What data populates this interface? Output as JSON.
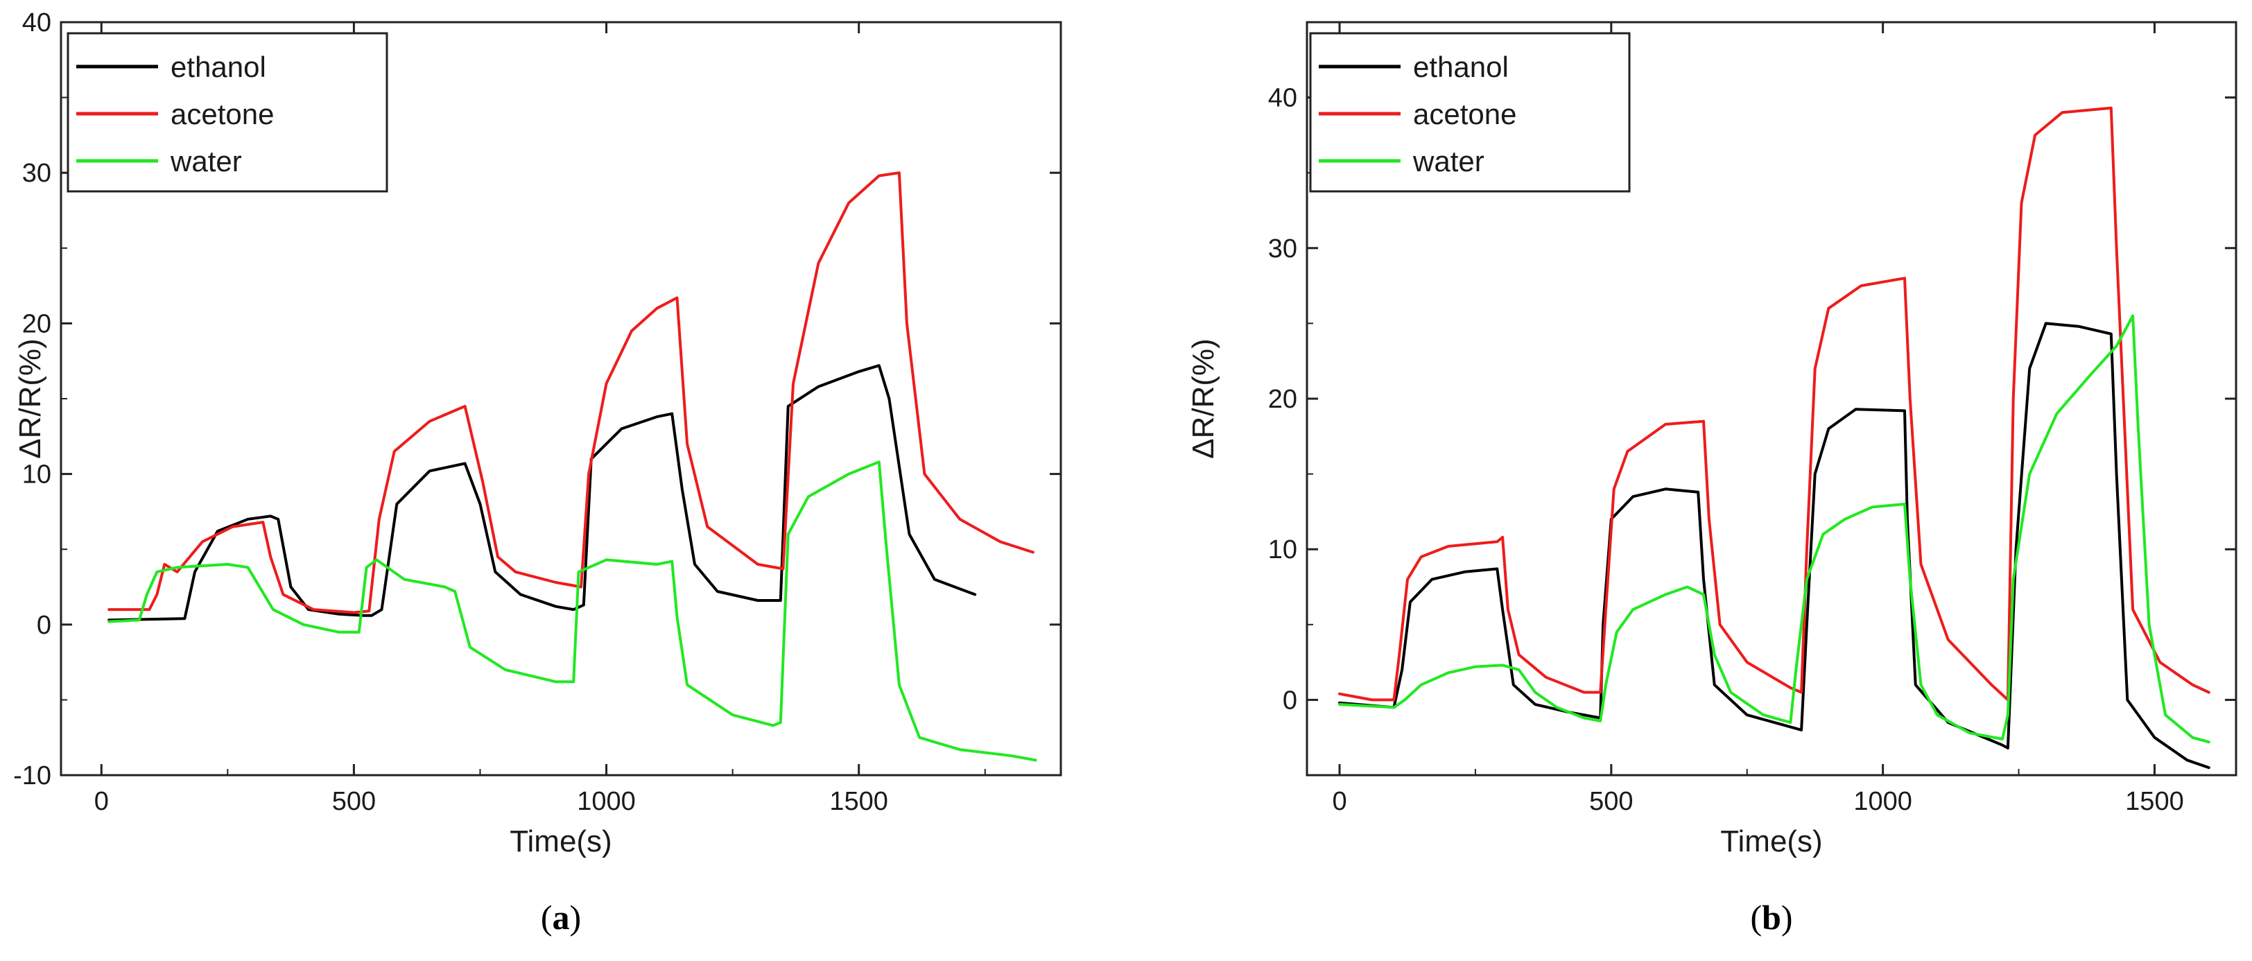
{
  "chart_data": [
    {
      "type": "line",
      "panel_label_open": "(",
      "panel_label_letter": "a",
      "panel_label_close": ")",
      "xlabel": "Time(s)",
      "ylabel": "ΔR/R(%)",
      "xlim": [
        -80,
        1900
      ],
      "ylim": [
        -10,
        40
      ],
      "xticks": [
        0,
        500,
        1000,
        1500
      ],
      "xtick_labels": [
        "0",
        "500",
        "1000",
        "1500"
      ],
      "yticks": [
        -10,
        0,
        10,
        20,
        30,
        40
      ],
      "ytick_labels": [
        "-10",
        "0",
        "10",
        "20",
        "30",
        "40"
      ],
      "legend_position": "top-left",
      "series": [
        {
          "name": "ethanol",
          "color": "#000000",
          "x": [
            15,
            165,
            185,
            230,
            290,
            335,
            350,
            375,
            410,
            470,
            520,
            535,
            555,
            585,
            650,
            720,
            750,
            780,
            830,
            900,
            935,
            955,
            970,
            1030,
            1100,
            1130,
            1150,
            1175,
            1220,
            1300,
            1345,
            1360,
            1420,
            1500,
            1540,
            1560,
            1600,
            1650,
            1730
          ],
          "y": [
            0.3,
            0.4,
            3.5,
            6.2,
            7.0,
            7.2,
            7.0,
            2.5,
            1.0,
            0.7,
            0.6,
            0.6,
            1.0,
            8.0,
            10.2,
            10.7,
            8.0,
            3.5,
            2.0,
            1.2,
            1.0,
            1.3,
            11.0,
            13.0,
            13.8,
            14.0,
            9.0,
            4.0,
            2.2,
            1.6,
            1.6,
            14.5,
            15.8,
            16.8,
            17.2,
            15.0,
            6.0,
            3.0,
            2.0
          ]
        },
        {
          "name": "acetone",
          "color": "#ee1c1c",
          "x": [
            15,
            95,
            110,
            125,
            150,
            200,
            260,
            320,
            335,
            360,
            420,
            500,
            530,
            550,
            580,
            650,
            720,
            755,
            785,
            820,
            900,
            950,
            965,
            1000,
            1050,
            1100,
            1140,
            1160,
            1200,
            1300,
            1350,
            1370,
            1420,
            1480,
            1540,
            1580,
            1595,
            1630,
            1700,
            1780,
            1845
          ],
          "y": [
            1.0,
            1.0,
            2.0,
            4.0,
            3.5,
            5.5,
            6.5,
            6.8,
            4.5,
            2.0,
            1.0,
            0.8,
            0.9,
            7.0,
            11.5,
            13.5,
            14.5,
            9.5,
            4.5,
            3.5,
            2.8,
            2.5,
            10.0,
            16.0,
            19.5,
            21.0,
            21.7,
            12.0,
            6.5,
            4.0,
            3.7,
            16.0,
            24.0,
            28.0,
            29.8,
            30.0,
            20.0,
            10.0,
            7.0,
            5.5,
            4.8
          ]
        },
        {
          "name": "water",
          "color": "#22e822",
          "x": [
            15,
            75,
            90,
            110,
            150,
            250,
            290,
            340,
            400,
            470,
            510,
            525,
            545,
            600,
            680,
            700,
            730,
            800,
            900,
            935,
            945,
            1000,
            1100,
            1130,
            1140,
            1160,
            1250,
            1330,
            1345,
            1360,
            1400,
            1480,
            1540,
            1555,
            1580,
            1620,
            1700,
            1800,
            1850
          ],
          "y": [
            0.2,
            0.3,
            2.0,
            3.5,
            3.8,
            4.0,
            3.8,
            1.0,
            0.0,
            -0.5,
            -0.5,
            3.8,
            4.3,
            3.0,
            2.5,
            2.2,
            -1.5,
            -3.0,
            -3.8,
            -3.8,
            3.5,
            4.3,
            4.0,
            4.2,
            0.5,
            -4.0,
            -6.0,
            -6.7,
            -6.5,
            6.0,
            8.5,
            10.0,
            10.8,
            5.0,
            -4.0,
            -7.5,
            -8.3,
            -8.7,
            -9.0
          ]
        }
      ]
    },
    {
      "type": "line",
      "panel_label_open": "(",
      "panel_label_letter": "b",
      "panel_label_close": ")",
      "xlabel": "Time(s)",
      "ylabel": "ΔR/R(%)",
      "xlim": [
        -60,
        1650
      ],
      "ylim": [
        -5,
        45
      ],
      "xticks": [
        0,
        500,
        1000,
        1500
      ],
      "xtick_labels": [
        "0",
        "500",
        "1000",
        "1500"
      ],
      "yticks": [
        0,
        10,
        20,
        30,
        40
      ],
      "ytick_labels": [
        "0",
        "10",
        "20",
        "30",
        "40"
      ],
      "legend_position": "top-left",
      "series": [
        {
          "name": "ethanol",
          "color": "#000000",
          "x": [
            0,
            100,
            115,
            130,
            170,
            230,
            290,
            300,
            320,
            360,
            420,
            480,
            485,
            500,
            540,
            600,
            660,
            670,
            690,
            750,
            850,
            860,
            875,
            900,
            950,
            1040,
            1045,
            1060,
            1120,
            1220,
            1230,
            1245,
            1270,
            1300,
            1360,
            1420,
            1430,
            1450,
            1500,
            1560,
            1600
          ],
          "y": [
            -0.2,
            -0.5,
            2.0,
            6.5,
            8.0,
            8.5,
            8.7,
            6.0,
            1.0,
            -0.3,
            -0.8,
            -1.2,
            5.0,
            12.0,
            13.5,
            14.0,
            13.8,
            8.0,
            1.0,
            -1.0,
            -2.0,
            5.0,
            15.0,
            18.0,
            19.3,
            19.2,
            12.0,
            1.0,
            -1.5,
            -3.0,
            -3.2,
            10.0,
            22.0,
            25.0,
            24.8,
            24.3,
            15.0,
            0.0,
            -2.5,
            -4.0,
            -4.5
          ]
        },
        {
          "name": "acetone",
          "color": "#ee1c1c",
          "x": [
            0,
            60,
            100,
            110,
            125,
            150,
            200,
            290,
            300,
            310,
            330,
            380,
            450,
            480,
            490,
            505,
            530,
            600,
            670,
            680,
            700,
            750,
            830,
            850,
            860,
            875,
            900,
            960,
            1040,
            1050,
            1070,
            1120,
            1200,
            1230,
            1240,
            1255,
            1280,
            1330,
            1420,
            1430,
            1460,
            1510,
            1570,
            1600
          ],
          "y": [
            0.4,
            0.0,
            0.0,
            3.0,
            8.0,
            9.5,
            10.2,
            10.5,
            10.8,
            6.0,
            3.0,
            1.5,
            0.5,
            0.5,
            6.0,
            14.0,
            16.5,
            18.3,
            18.5,
            12.0,
            5.0,
            2.5,
            0.8,
            0.5,
            10.0,
            22.0,
            26.0,
            27.5,
            28.0,
            20.0,
            9.0,
            4.0,
            1.0,
            0.0,
            20.0,
            33.0,
            37.5,
            39.0,
            39.3,
            30.0,
            6.0,
            2.5,
            1.0,
            0.5
          ]
        },
        {
          "name": "water",
          "color": "#22e822",
          "x": [
            0,
            100,
            120,
            150,
            200,
            250,
            300,
            330,
            360,
            400,
            450,
            480,
            490,
            510,
            540,
            600,
            640,
            670,
            690,
            720,
            780,
            830,
            840,
            860,
            890,
            930,
            980,
            1040,
            1050,
            1070,
            1100,
            1160,
            1220,
            1230,
            1240,
            1270,
            1320,
            1380,
            1430,
            1460,
            1470,
            1490,
            1520,
            1570,
            1600
          ],
          "y": [
            -0.3,
            -0.5,
            0.0,
            1.0,
            1.8,
            2.2,
            2.3,
            2.0,
            0.5,
            -0.5,
            -1.2,
            -1.4,
            1.0,
            4.5,
            6.0,
            7.0,
            7.5,
            7.0,
            3.0,
            0.5,
            -1.0,
            -1.5,
            2.0,
            8.0,
            11.0,
            12.0,
            12.8,
            13.0,
            8.0,
            1.0,
            -1.0,
            -2.2,
            -2.6,
            -1.0,
            8.0,
            15.0,
            19.0,
            21.5,
            23.5,
            25.5,
            18.0,
            5.0,
            -1.0,
            -2.5,
            -2.8
          ]
        }
      ]
    }
  ]
}
